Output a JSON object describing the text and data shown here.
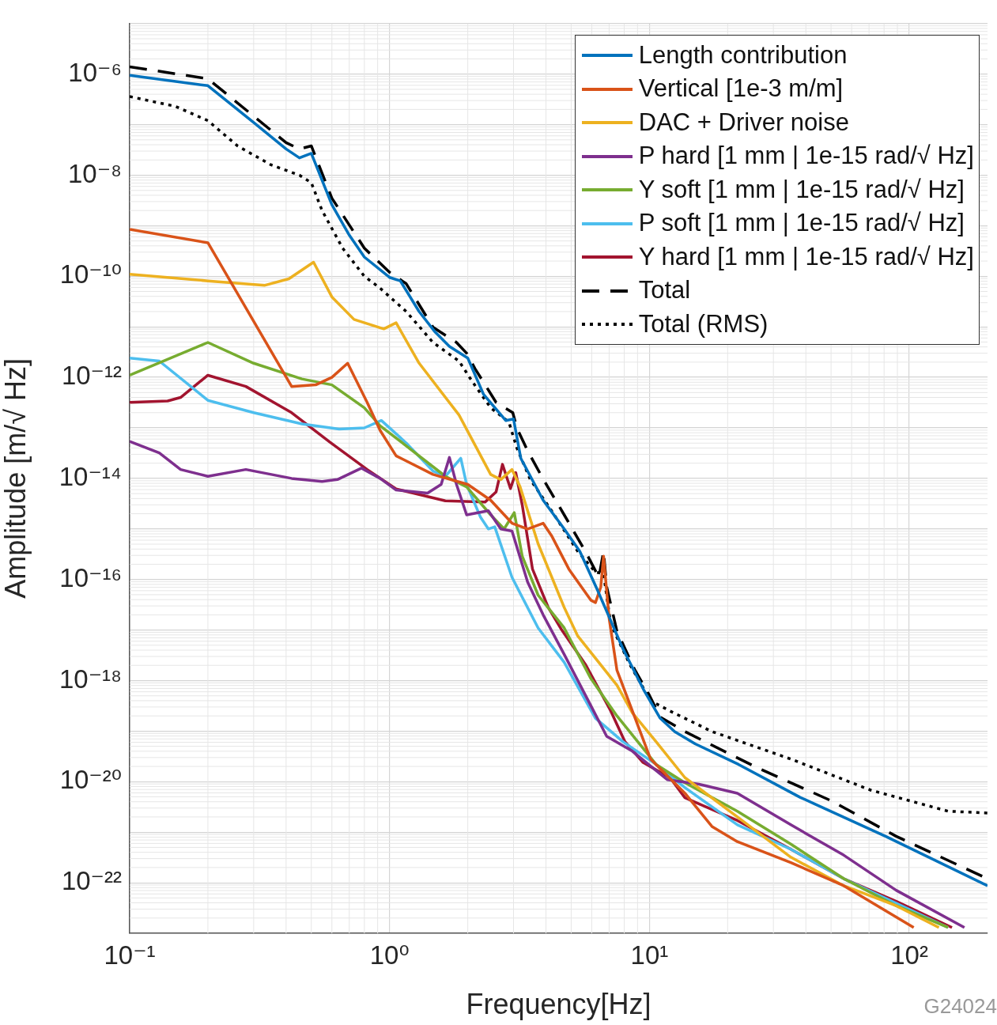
{
  "chart_data": {
    "type": "line",
    "xlabel": "Frequency[Hz]",
    "ylabel": "Amplitude [m/√ Hz]",
    "log": "xy",
    "grid": true,
    "legend": "top right",
    "marker": "none",
    "xlim": [
      0.1,
      200
    ],
    "xticks": [
      {
        "value": 0.1,
        "label": "10⁻¹"
      },
      {
        "value": 1,
        "label": "10⁰"
      },
      {
        "value": 10,
        "label": "10¹"
      },
      {
        "value": 100,
        "label": "10²"
      }
    ],
    "ylim": [
      1e-23,
      1e-05
    ],
    "yticks": [
      {
        "value": 1e-23,
        "label": null
      },
      {
        "value": 1e-22,
        "label": "10⁻²²"
      },
      {
        "value": 1e-21,
        "label": null
      },
      {
        "value": 1e-20,
        "label": "10⁻²⁰"
      },
      {
        "value": 1e-19,
        "label": null
      },
      {
        "value": 1e-18,
        "label": "10⁻¹⁸"
      },
      {
        "value": 1e-17,
        "label": null
      },
      {
        "value": 1e-16,
        "label": "10⁻¹⁶"
      },
      {
        "value": 1e-15,
        "label": null
      },
      {
        "value": 1e-14,
        "label": "10⁻¹⁴"
      },
      {
        "value": 1e-13,
        "label": null
      },
      {
        "value": 1e-12,
        "label": "10⁻¹²"
      },
      {
        "value": 1e-11,
        "label": null
      },
      {
        "value": 1e-10,
        "label": "10⁻¹⁰"
      },
      {
        "value": 1e-09,
        "label": null
      },
      {
        "value": 1e-08,
        "label": "10⁻⁸"
      },
      {
        "value": 1e-07,
        "label": null
      },
      {
        "value": 1e-06,
        "label": "10⁻⁶"
      },
      {
        "value": 1e-05,
        "label": null
      }
    ],
    "annotations": [
      "G24024"
    ],
    "series": [
      {
        "name": "Length contribution",
        "color": "#0072bd",
        "line_style": "solid",
        "x": [
          0.1,
          0.2,
          0.3,
          0.4,
          0.45,
          0.5,
          0.6,
          0.7,
          0.8,
          1.0,
          1.1,
          1.3,
          1.5,
          1.7,
          2.0,
          2.3,
          2.8,
          3.0,
          3.2,
          3.9,
          4.7,
          5.4,
          6.3,
          7.9,
          9.5,
          11,
          12.5,
          15,
          22,
          38,
          81,
          200
        ],
        "values": [
          9.5e-07,
          5.9e-07,
          1.1e-07,
          3.3e-08,
          2.2e-08,
          2.7e-08,
          2.6e-09,
          6.5e-10,
          2.4e-10,
          9.5e-11,
          8.1e-11,
          2e-11,
          7.8e-12,
          4.1e-12,
          2.4e-12,
          4.6e-13,
          1.4e-13,
          1.5e-13,
          2.5e-14,
          3.7e-15,
          1e-15,
          3.6e-16,
          6.3e-17,
          4.3e-18,
          6.6e-19,
          1.8e-19,
          9.8e-20,
          5.6e-20,
          2.2e-20,
          4.9e-21,
          8.3e-22,
          8.7e-23
        ]
      },
      {
        "name": "Vertical [1e-3 m/m]",
        "color": "#d95319",
        "line_style": "solid",
        "x": [
          0.1,
          0.2,
          0.42,
          0.52,
          0.6,
          0.69,
          0.82,
          0.92,
          1.06,
          1.47,
          2.0,
          2.45,
          2.96,
          3.4,
          3.9,
          4.2,
          4.9,
          5.95,
          6.2,
          6.5,
          6.66,
          7.0,
          7.5,
          8.6,
          10.1,
          13.7,
          17.4,
          21.8,
          35,
          56,
          104
        ],
        "values": [
          8.5e-10,
          4.6e-10,
          6.6e-13,
          7.1e-13,
          1e-12,
          1.9e-12,
          3.2e-13,
          8.9e-14,
          2.8e-14,
          1.2e-14,
          7.6e-15,
          3.7e-15,
          1.3e-15,
          1e-15,
          1.3e-15,
          7.4e-16,
          1.6e-16,
          3.9e-17,
          3.5e-17,
          7.1e-17,
          2.9e-16,
          1.7e-17,
          1.6e-18,
          2.5e-19,
          2.8e-20,
          5.9e-21,
          1.3e-21,
          6.5e-22,
          2.5e-22,
          8.7e-23,
          1.3e-23
        ]
      },
      {
        "name": "DAC + Driver noise",
        "color": "#edb120",
        "line_style": "solid",
        "x": [
          0.1,
          0.2,
          0.33,
          0.41,
          0.51,
          0.6,
          0.73,
          0.95,
          1.06,
          1.3,
          1.85,
          2.45,
          2.68,
          2.96,
          3.18,
          3.73,
          4.7,
          5.3,
          7.5,
          8.6,
          10.6,
          13.7,
          21.8,
          35,
          56,
          89,
          130
        ],
        "values": [
          1.1e-10,
          8.1e-11,
          6.6e-11,
          8.9e-11,
          1.9e-10,
          3.9e-11,
          1.4e-11,
          9.1e-12,
          1.2e-11,
          1.9e-12,
          1.8e-13,
          1.2e-14,
          9.5e-15,
          1.5e-14,
          6.8e-15,
          5.1e-16,
          2.8e-17,
          7.6e-18,
          8.1e-19,
          2.3e-19,
          6.2e-20,
          1.2e-20,
          2e-21,
          3.2e-22,
          8.7e-23,
          3.5e-23,
          1.3e-23
        ]
      },
      {
        "name": "P hard [1 mm | 1e-15 rad/√ Hz]",
        "color": "#7e2f8e",
        "line_style": "solid",
        "x": [
          0.1,
          0.13,
          0.157,
          0.2,
          0.28,
          0.42,
          0.55,
          0.63,
          0.78,
          0.92,
          1.06,
          1.4,
          1.58,
          1.7,
          1.81,
          1.98,
          2.4,
          2.68,
          2.96,
          3.4,
          3.9,
          4.7,
          5.95,
          6.85,
          8.6,
          11.7,
          15.5,
          21.8,
          35,
          56,
          89,
          163
        ],
        "values": [
          5.4e-14,
          3.2e-14,
          1.5e-14,
          1.1e-14,
          1.5e-14,
          1e-14,
          8.7e-15,
          9.5e-15,
          1.6e-14,
          1e-14,
          5.9e-15,
          5.1e-15,
          7.6e-15,
          2.6e-14,
          7.6e-15,
          1.9e-15,
          2.3e-15,
          1e-15,
          9.1e-16,
          8.9e-17,
          2e-17,
          3.3e-18,
          3.2e-19,
          7.9e-20,
          4e-20,
          1.1e-20,
          8.9e-21,
          5.9e-21,
          1.4e-21,
          3.5e-22,
          7.1e-23,
          1.3e-23
        ]
      },
      {
        "name": "Y soft [1 mm | 1e-15 rad/√ Hz]",
        "color": "#77ac30",
        "line_style": "solid",
        "x": [
          0.1,
          0.2,
          0.3,
          0.46,
          0.6,
          0.8,
          0.92,
          1.16,
          1.64,
          1.98,
          2.45,
          2.76,
          3.02,
          3.24,
          3.73,
          4.7,
          5.0,
          5.95,
          7.5,
          10.6,
          13.7,
          21.8,
          35,
          56,
          89,
          141
        ],
        "values": [
          1.1e-12,
          4.9e-12,
          1.9e-12,
          9.3e-13,
          7.1e-13,
          2.5e-13,
          1.1e-13,
          4.4e-14,
          1.1e-14,
          6.8e-15,
          1.9e-15,
          1e-15,
          2.1e-15,
          2.9e-16,
          4.9e-17,
          1.1e-17,
          6e-18,
          1.1e-18,
          2e-19,
          2.2e-20,
          9.5e-21,
          2.6e-21,
          5.8e-22,
          1.2e-22,
          3.5e-23,
          1.3e-23
        ]
      },
      {
        "name": "P soft [1 mm | 1e-15 rad/√ Hz]",
        "color": "#4dbeee",
        "line_style": "solid",
        "x": [
          0.1,
          0.13,
          0.2,
          0.3,
          0.46,
          0.64,
          0.8,
          0.93,
          1.16,
          1.47,
          1.64,
          1.88,
          1.98,
          2.24,
          2.4,
          2.54,
          2.96,
          3.73,
          4.7,
          6.2,
          7.9,
          10.6,
          13.7,
          21.8,
          35,
          56,
          141
        ],
        "values": [
          2.4e-12,
          2.1e-12,
          3.5e-13,
          2e-13,
          1.2e-13,
          9.5e-14,
          1e-13,
          1.4e-13,
          5e-14,
          1.4e-14,
          1.1e-14,
          2.5e-14,
          7.6e-15,
          1.7e-15,
          1e-15,
          1.1e-15,
          1.1e-16,
          1.1e-17,
          2.3e-18,
          1.8e-19,
          6.2e-20,
          2.2e-20,
          7.6e-21,
          1.4e-21,
          4.6e-22,
          1.2e-22,
          1.3e-23
        ]
      },
      {
        "name": "Y hard [1 mm | 1e-15 rad/√ Hz]",
        "color": "#a2142f",
        "line_style": "solid",
        "x": [
          0.1,
          0.14,
          0.157,
          0.2,
          0.28,
          0.42,
          0.59,
          0.82,
          1.06,
          1.3,
          1.64,
          2.33,
          2.57,
          2.72,
          2.92,
          3.06,
          3.24,
          3.55,
          4.08,
          4.6,
          5.67,
          7.1,
          8.05,
          9.45,
          12,
          13.7,
          21.8,
          35,
          56,
          89,
          146
        ],
        "values": [
          3.2e-13,
          3.4e-13,
          4e-13,
          1.1e-12,
          6.6e-13,
          2e-13,
          5.2e-14,
          1.5e-14,
          6.2e-15,
          4.8e-15,
          3.6e-15,
          3.4e-15,
          5.4e-15,
          1.9e-14,
          6.3e-15,
          1.3e-14,
          3e-15,
          1.6e-16,
          2.8e-17,
          1e-17,
          2.1e-18,
          2.5e-19,
          6.2e-20,
          2.4e-20,
          1.2e-20,
          4.8e-21,
          1.7e-21,
          4.6e-22,
          1.2e-22,
          4.3e-23,
          1.3e-23
        ]
      },
      {
        "name": "Total",
        "color": "#000000",
        "line_style": "dashed",
        "x": [
          0.1,
          0.2,
          0.4,
          0.45,
          0.5,
          0.6,
          0.8,
          1.0,
          1.16,
          1.47,
          1.81,
          1.98,
          2.13,
          2.57,
          2.98,
          3.09,
          3.4,
          3.91,
          4.7,
          5.67,
          6.39,
          6.66,
          6.85,
          7.5,
          8.8,
          10,
          11,
          13.7,
          25.9,
          50,
          89,
          200
        ],
        "values": [
          1.4e-06,
          8.1e-07,
          4.4e-08,
          3.3e-08,
          3.8e-08,
          3.5e-09,
          3.6e-10,
          1.2e-10,
          7.1e-11,
          9.8e-12,
          4.9e-12,
          3e-12,
          1.5e-12,
          3.2e-13,
          2e-13,
          1e-13,
          3.5e-14,
          9.5e-15,
          1.9e-15,
          3.6e-16,
          1.1e-16,
          3.6e-16,
          7.1e-17,
          9.5e-18,
          1.6e-18,
          5.1e-19,
          1.9e-19,
          9.8e-20,
          1.9e-20,
          4.2e-21,
          8.3e-22,
          1.2e-22
        ]
      },
      {
        "name": "Total (RMS)",
        "color": "#000000",
        "line_style": "dotted",
        "x": [
          0.1,
          0.15,
          0.2,
          0.26,
          0.35,
          0.45,
          0.5,
          0.55,
          0.66,
          0.8,
          0.92,
          1.16,
          1.47,
          1.85,
          2.08,
          2.45,
          2.88,
          3.09,
          3.48,
          4.2,
          5.3,
          6.2,
          6.66,
          7.1,
          8.4,
          10.1,
          12,
          17.4,
          35,
          71,
          141,
          200
        ],
        "values": [
          3.6e-07,
          2.3e-07,
          1.2e-07,
          3.8e-08,
          1.6e-08,
          1e-08,
          7.1e-09,
          2e-09,
          3.6e-10,
          1e-10,
          5.8e-11,
          2e-11,
          4.9e-12,
          2.1e-12,
          8.3e-13,
          2.5e-13,
          1.3e-13,
          4e-14,
          9.5e-15,
          2.3e-15,
          3.6e-16,
          1.4e-16,
          1.3e-16,
          1.3e-17,
          2.1e-18,
          4e-19,
          2.5e-19,
          9.8e-20,
          2.8e-20,
          6.8e-21,
          2.6e-21,
          2.4e-21
        ]
      }
    ]
  }
}
